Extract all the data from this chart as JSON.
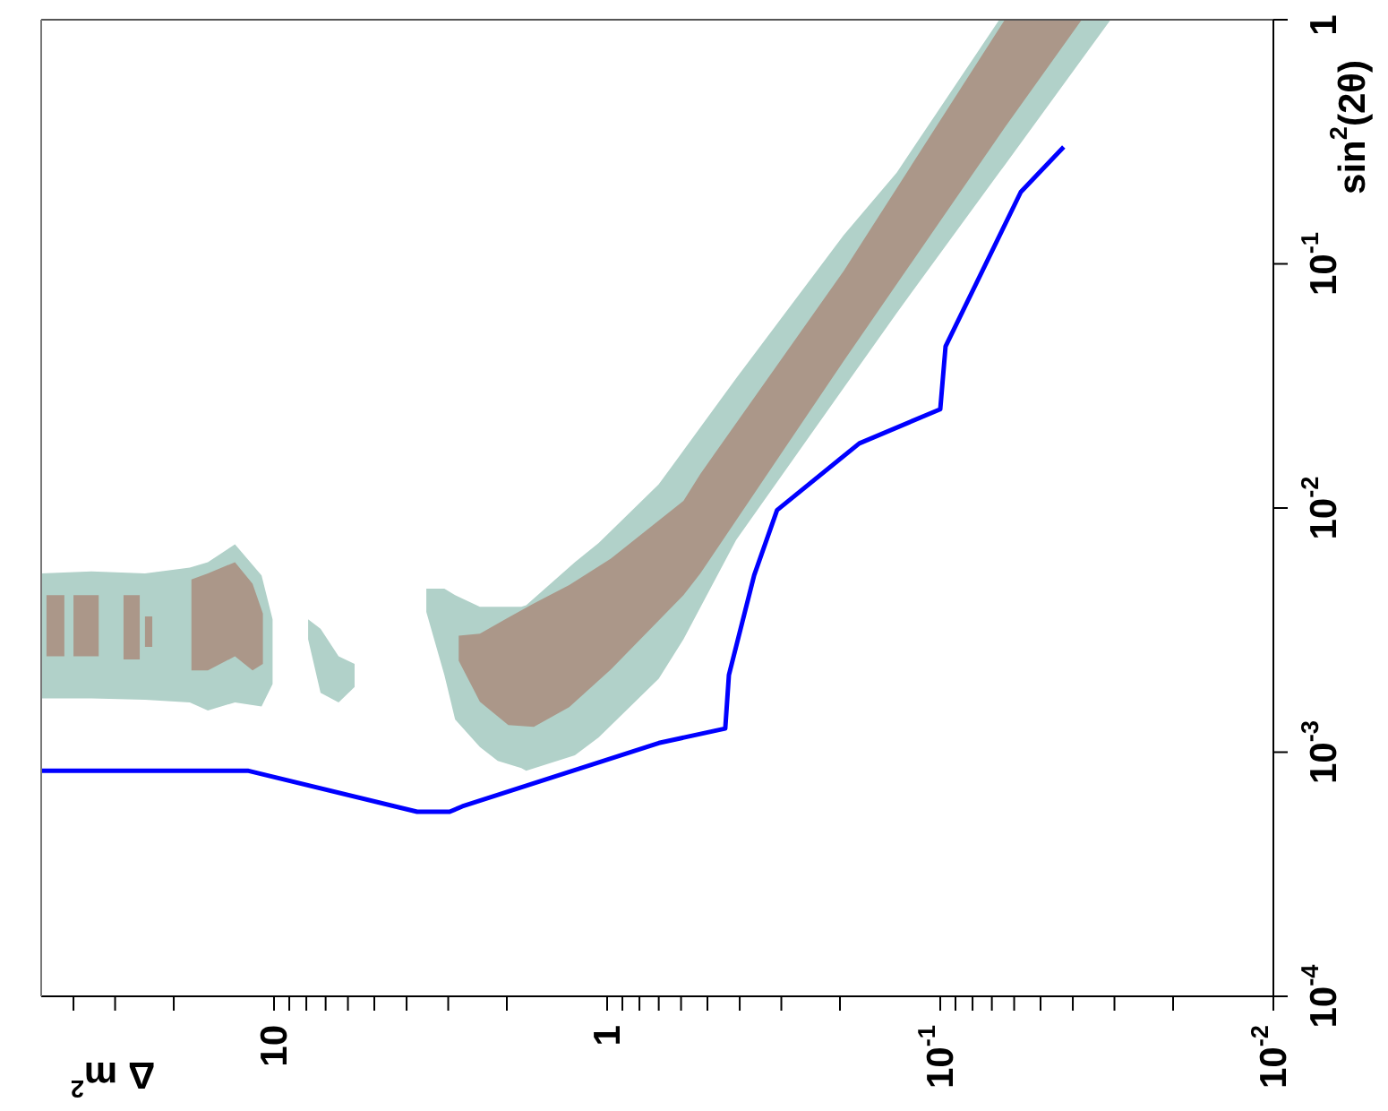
{
  "chart_data": {
    "type": "area",
    "xlabel": "Δ m$^{2}$",
    "ylabel": "sin$^{2}$(2θ)",
    "log": "xy",
    "xlim": [
      50,
      0.01
    ],
    "ylim": [
      0.0001,
      1
    ],
    "xticks": [
      {
        "value": 40,
        "label": null
      },
      {
        "value": 30,
        "label": null
      },
      {
        "value": 20,
        "label": null
      },
      10,
      {
        "value": 9,
        "label": null
      },
      {
        "value": 8,
        "label": null
      },
      {
        "value": 7,
        "label": null
      },
      {
        "value": 6,
        "label": null
      },
      {
        "value": 5,
        "label": null
      },
      {
        "value": 4,
        "label": null
      },
      {
        "value": 3,
        "label": null
      },
      {
        "value": 2,
        "label": null
      },
      1,
      {
        "value": 0.9,
        "label": null
      },
      {
        "value": 0.8,
        "label": null
      },
      {
        "value": 0.7,
        "label": null
      },
      {
        "value": 0.6,
        "label": null
      },
      {
        "value": 0.5,
        "label": null
      },
      {
        "value": 0.4,
        "label": null
      },
      {
        "value": 0.3,
        "label": null
      },
      {
        "value": 0.2,
        "label": null
      },
      {
        "value": 0.1,
        "label": "10$^{-1}$"
      },
      {
        "value": 0.09,
        "label": null
      },
      {
        "value": 0.08,
        "label": null
      },
      {
        "value": 0.07,
        "label": null
      },
      {
        "value": 0.06,
        "label": null
      },
      {
        "value": 0.05,
        "label": null
      },
      {
        "value": 0.04,
        "label": null
      },
      {
        "value": 0.03,
        "label": null
      },
      {
        "value": 0.02,
        "label": null
      },
      {
        "value": 0.01,
        "label": "10$^{-2}$"
      }
    ],
    "yticks": [
      {
        "value": 0.0001,
        "label": "10$^{-4}$"
      },
      {
        "value": 0.001,
        "label": "10$^{-3}$"
      },
      {
        "value": 0.01,
        "label": "10$^{-2}$"
      },
      {
        "value": 0.1,
        "label": "10$^{-1}$"
      },
      1
    ],
    "series": [
      {
        "color": "#b1d1c9",
        "x": [
          50,
          35.3,
          24.4,
          17.9,
          15.8,
          13.1,
          10.9,
          10.1
        ],
        "values": [
          null,
          null,
          null,
          null,
          null,
          null,
          null,
          null
        ],
        "lower": [
          0.00166,
          0.00166,
          0.00164,
          0.0016,
          0.00148,
          0.0016,
          0.00154,
          0.0019
        ],
        "upper": [
          0.0054,
          0.0055,
          0.0054,
          0.0057,
          0.006,
          0.0071,
          0.0053,
          0.0035
        ]
      },
      {
        "color": "#b1d1c9",
        "x": [
          7.9,
          7.25,
          6.4,
          5.73
        ],
        "values": [
          null,
          null,
          null,
          null
        ],
        "lower": [
          0.0029,
          0.00175,
          0.0016,
          0.00185
        ],
        "upper": [
          0.0035,
          0.0032,
          0.00247,
          0.0023
        ]
      },
      {
        "color": "#b1d1c9",
        "x": [
          3.49,
          3.08,
          2.86,
          2.41,
          2.13,
          1.81,
          1.75,
          1.25,
          1.06,
          0.7,
          0.59,
          0.41,
          0.195,
          0.135,
          0.0665,
          0.064,
          0.0308
        ],
        "values": [
          null,
          null,
          null,
          null,
          null,
          null,
          null,
          null,
          null,
          null,
          null,
          null,
          null,
          null,
          null,
          null,
          null
        ],
        "lower": [
          0.00375,
          0.00207,
          0.00136,
          0.00105,
          0.00092,
          0.00086,
          0.00084,
          0.00097,
          0.00115,
          0.002,
          0.0029,
          0.0074,
          0.031,
          0.063,
          0.237,
          0.254,
          1
        ],
        "upper": [
          0.00467,
          0.00467,
          0.0044,
          0.00394,
          0.00394,
          0.00394,
          0.004,
          0.006,
          0.0072,
          0.0125,
          0.0172,
          0.034,
          0.131,
          0.237,
          1,
          1,
          1
        ]
      },
      {
        "color": "#ab9789",
        "x": [
          48.2,
          45.3,
          42.6,
          41.5,
          40,
          36.7,
          33.6,
          31.2,
          28.3,
          26.6,
          25.3,
          24.7,
          24.4,
          23.2
        ],
        "values": [
          null,
          null,
          null,
          null,
          null,
          null,
          null,
          null,
          null,
          null,
          null,
          null,
          null,
          null
        ],
        "lower": [
          0.00247,
          0.00247,
          0.00247,
          null,
          0.00247,
          0.00247,
          0.00247,
          null,
          0.0024,
          0.0024,
          0.0024,
          null,
          0.0027,
          0.0027
        ],
        "upper": [
          0.0044,
          0.0044,
          0.0044,
          null,
          0.0044,
          0.0044,
          0.0044,
          null,
          0.0044,
          0.0044,
          0.0044,
          null,
          0.0036,
          0.0036
        ]
      },
      {
        "color": "#ab9789",
        "x": [
          17.7,
          15.8,
          13.1,
          11.6,
          10.8
        ],
        "values": [
          null,
          null,
          null,
          null,
          null
        ],
        "lower": [
          0.00216,
          0.00216,
          0.00247,
          0.00216,
          0.0023
        ],
        "upper": [
          0.0051,
          0.0054,
          0.006,
          0.0049,
          0.0037
        ]
      },
      {
        "color": "#ab9789",
        "x": [
          2.79,
          2.41,
          1.98,
          1.66,
          1.3,
          0.975,
          0.59,
          0.525,
          0.195,
          0.064,
          0.0376
        ],
        "values": [
          null,
          null,
          null,
          null,
          null,
          null,
          null,
          null,
          null,
          null,
          null
        ],
        "lower": [
          0.00237,
          0.00161,
          0.00129,
          0.00127,
          0.00153,
          0.00218,
          0.0044,
          0.0054,
          0.04,
          0.362,
          1
        ],
        "upper": [
          0.003,
          0.00306,
          0.00356,
          0.00407,
          0.00483,
          0.0062,
          0.0107,
          0.0138,
          0.0935,
          1,
          1
        ]
      },
      {
        "type": "line",
        "color": "#0000ff",
        "x": [
          50,
          12,
          3.72,
          2.97,
          2.72,
          0.7,
          0.442,
          0.431,
          0.362,
          0.309,
          0.175,
          0.1,
          0.0964,
          0.0573,
          0.0426
        ],
        "values": [
          0.00084,
          0.00084,
          0.00057,
          0.00057,
          0.0006,
          0.00109,
          0.00125,
          0.00207,
          0.0053,
          0.0098,
          0.0184,
          0.0254,
          0.0459,
          0.197,
          0.301
        ]
      }
    ]
  }
}
